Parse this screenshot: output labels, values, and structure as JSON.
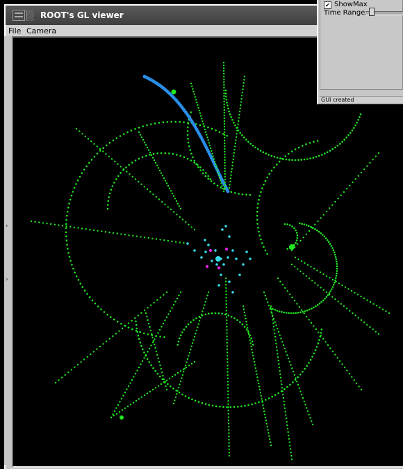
{
  "window": {
    "title": "ROOT's GL viewer",
    "menus": [
      {
        "label": "File"
      },
      {
        "label": "Camera"
      }
    ]
  },
  "side_panel": {
    "checkbox_label": "ShowMax",
    "checkbox_checked": true,
    "slider_label": "Time Range:",
    "status_text": "GUI created"
  },
  "colors": {
    "background": "#000000",
    "track": "#22e622",
    "hit": "#39d7e8",
    "vertex": "#e020e0",
    "highlight_track": "#2a8ee8"
  }
}
